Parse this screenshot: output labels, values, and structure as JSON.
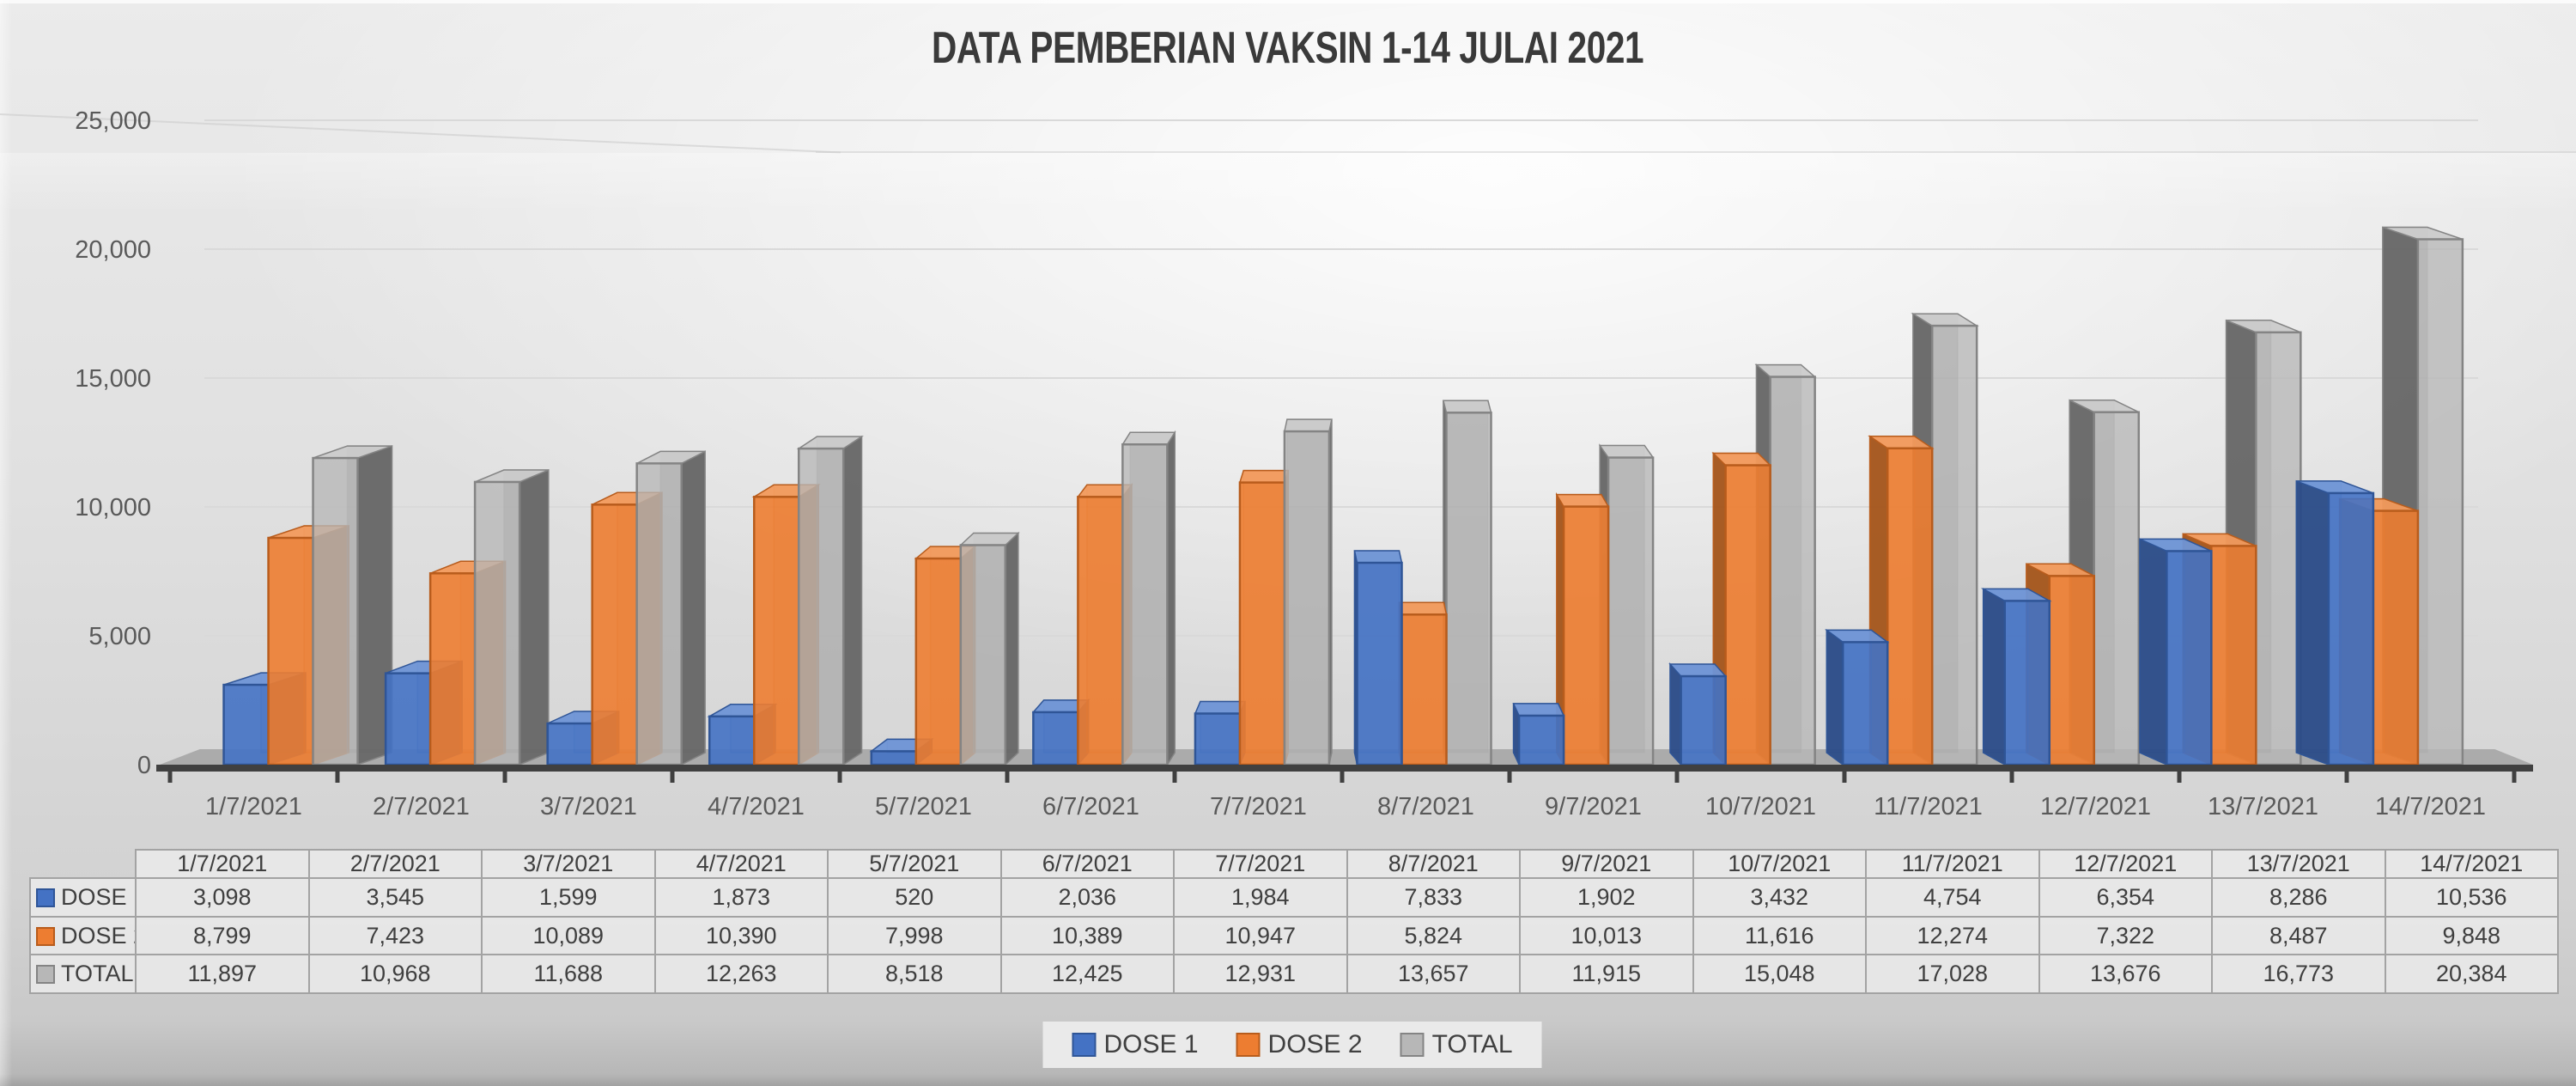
{
  "title": "DATA PEMBERIAN VAKSIN 1-14 JULAI 2021",
  "chart_data": {
    "type": "bar",
    "variant": "3d-clustered-column",
    "title": "DATA PEMBERIAN VAKSIN 1-14 JULAI 2021",
    "categories": [
      "1/7/2021",
      "2/7/2021",
      "3/7/2021",
      "4/7/2021",
      "5/7/2021",
      "6/7/2021",
      "7/7/2021",
      "8/7/2021",
      "9/7/2021",
      "10/7/2021",
      "11/7/2021",
      "12/7/2021",
      "13/7/2021",
      "14/7/2021"
    ],
    "series": [
      {
        "name": "DOSE 1",
        "color": "#4472C4",
        "color_top": "#6f95d6",
        "color_side": "#2b4c88",
        "color_border": "#2F5597",
        "values": [
          3098,
          3545,
          1599,
          1873,
          520,
          2036,
          1984,
          7833,
          1902,
          3432,
          4754,
          6354,
          8286,
          10536
        ]
      },
      {
        "name": "DOSE 2",
        "color": "#ED7D31",
        "color_top": "#f29a5c",
        "color_side": "#a4551b",
        "color_border": "#B85C1C",
        "values": [
          8799,
          7423,
          10089,
          10390,
          7998,
          10389,
          10947,
          5824,
          10013,
          11616,
          12274,
          7322,
          8487,
          9848
        ]
      },
      {
        "name": "TOTAL",
        "color": "#b7b7b7",
        "color_top": "#cbcbcb",
        "color_side": "#686868",
        "color_border": "#848484",
        "values": [
          11897,
          10968,
          11688,
          12263,
          8518,
          12425,
          12931,
          13657,
          11915,
          15048,
          17028,
          13676,
          16773,
          20384
        ]
      }
    ],
    "xlabel": "",
    "ylabel": "",
    "ylim": [
      0,
      25000
    ],
    "ytick_step": 5000,
    "ytick_labels": [
      "0",
      "5,000",
      "10,000",
      "15,000",
      "20,000",
      "25,000"
    ],
    "grid": true,
    "legend_position": "bottom",
    "data_table_shown": true
  },
  "colors": {
    "axis_text": "#595959",
    "axis_line": "#404040",
    "gridline": "#d9d9d9",
    "floor": "#ababab",
    "table_border": "#a3a3a3",
    "table_text": "#3f3f3f",
    "title_text": "#3a3a3a"
  }
}
